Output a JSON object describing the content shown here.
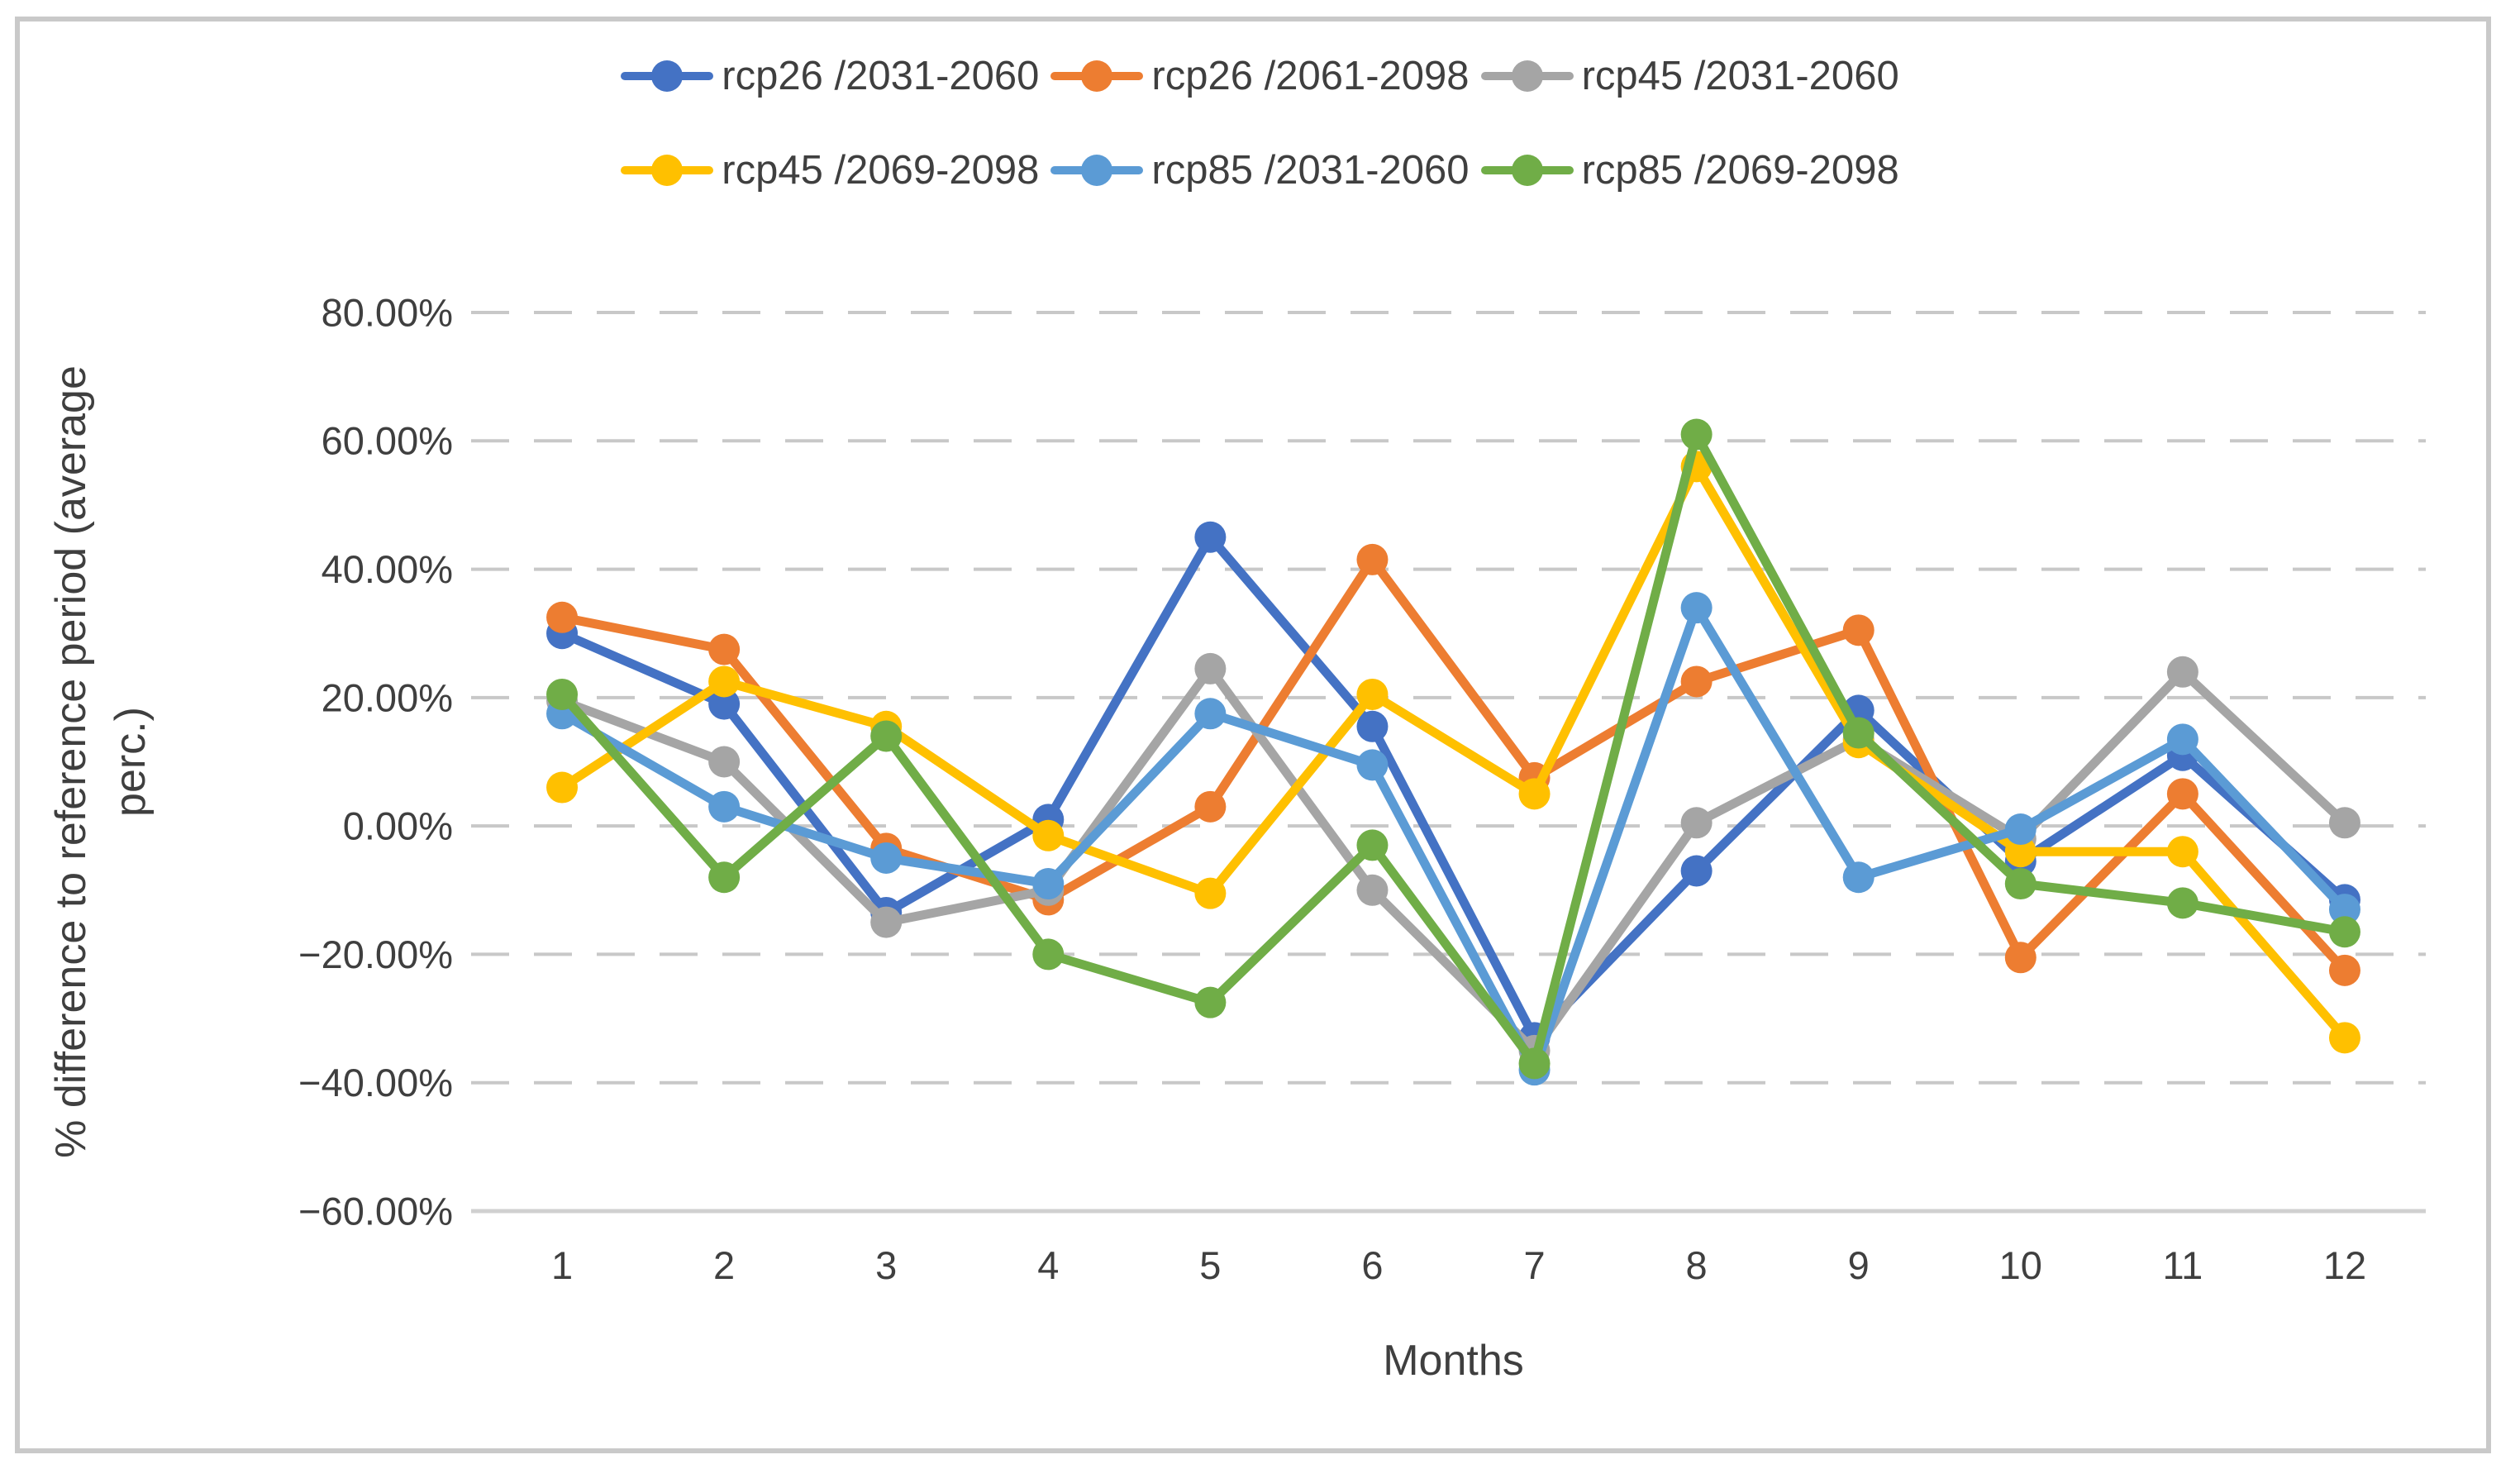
{
  "page": {
    "background_color": "#ffffff",
    "frame_border_color": "#c9c9c9"
  },
  "chart_data": {
    "type": "line",
    "title": "",
    "xlabel": "Months",
    "ylabel": "% difference to reference period (average perc.)",
    "ylabel_line1": "% difference to reference period (average",
    "ylabel_line2": "perc.)",
    "x": [
      1,
      2,
      3,
      4,
      5,
      6,
      7,
      8,
      9,
      10,
      11,
      12
    ],
    "xtick_labels": [
      "1",
      "2",
      "3",
      "4",
      "5",
      "6",
      "7",
      "8",
      "9",
      "10",
      "11",
      "12"
    ],
    "ylim": [
      -60,
      80
    ],
    "ytick_step": 20,
    "ytick_labels": [
      "80.00%",
      "60.00%",
      "40.00%",
      "20.00%",
      "0.00%",
      "−20.00%",
      "−40.00%",
      "−60.00%"
    ],
    "ytick_values": [
      80,
      60,
      40,
      20,
      0,
      -20,
      -40,
      -60
    ],
    "grid": "horizontal-dashed",
    "grid_color": "#c8c8c8",
    "axis_line_color": "#d0d0d0",
    "legend_position": "top-center-two-rows",
    "legend_rows": [
      [
        0,
        1,
        2
      ],
      [
        3,
        4,
        5
      ]
    ],
    "series": [
      {
        "name": "rcp26 /2031-2060",
        "color": "#4472C4",
        "values": [
          30,
          19,
          -13.5,
          1,
          45,
          15.5,
          -33,
          -7,
          18,
          -5.5,
          11,
          -11.5
        ]
      },
      {
        "name": "rcp26 /2061-2098",
        "color": "#ED7D31",
        "values": [
          32.5,
          27.5,
          -3.5,
          -11.5,
          3,
          41.5,
          7.5,
          22.5,
          30.5,
          -20.5,
          5,
          -22.5
        ]
      },
      {
        "name": "rcp45 /2031-2060",
        "color": "#A5A5A5",
        "values": [
          19.5,
          10,
          -15,
          -10,
          24.5,
          -10,
          -35,
          0.5,
          13.5,
          -2,
          24,
          0.5
        ]
      },
      {
        "name": "rcp45 /2069-2098",
        "color": "#FFC000",
        "values": [
          6,
          22.5,
          15.5,
          -1.5,
          -10.5,
          20.5,
          5,
          56,
          13,
          -4,
          -4,
          -33
        ]
      },
      {
        "name": "rcp85 /2031-2060",
        "color": "#5B9BD5",
        "values": [
          17.5,
          3,
          -5,
          -9,
          17.5,
          9.5,
          -38,
          34,
          -8,
          -0.5,
          13.5,
          -13
        ]
      },
      {
        "name": "rcp85 /2069-2098",
        "color": "#70AD47",
        "values": [
          20.5,
          -8,
          14,
          -20,
          -27.5,
          -3,
          -37,
          61,
          14.5,
          -9,
          -12,
          -16.5
        ]
      }
    ]
  }
}
